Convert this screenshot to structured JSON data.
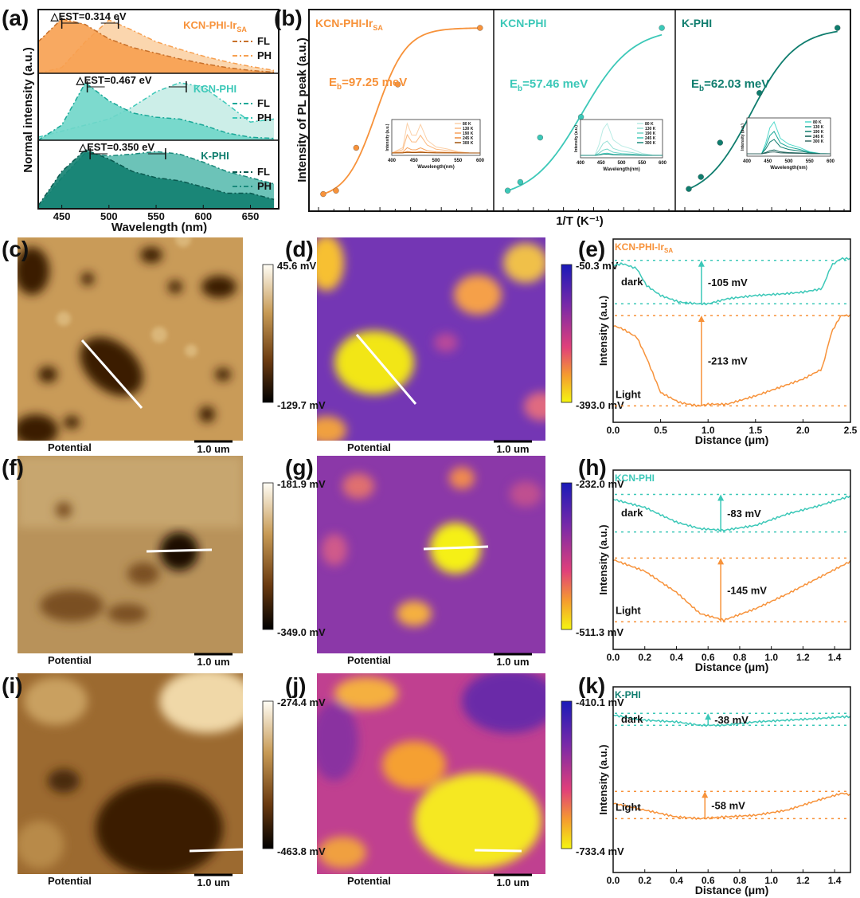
{
  "panel_labels": [
    "(a)",
    "(b)",
    "(c)",
    "(d)",
    "(e)",
    "(f)",
    "(g)",
    "(h)",
    "(i)",
    "(j)",
    "(k)"
  ],
  "colors": {
    "orange": "#f7923a",
    "cyan": "#3cc8b8",
    "teal": "#0f7d6e",
    "teal_mid": "#2aa89a"
  },
  "samples": [
    {
      "name": "KCN-PHI-Ir",
      "sub": "SA"
    },
    {
      "name": "KCN-PHI",
      "sub": ""
    },
    {
      "name": "K-PHI",
      "sub": ""
    }
  ],
  "chart_data": [
    {
      "id": "a",
      "type": "area",
      "xlabel": "Wavelength (nm)",
      "ylabel": "Normal intensity (a.u.)",
      "xlim": [
        425,
        680
      ],
      "xticks": [
        450,
        500,
        550,
        600,
        650
      ],
      "legend": [
        "FL",
        "PH"
      ],
      "x": [
        425,
        450,
        475,
        500,
        525,
        550,
        575,
        600,
        625,
        650,
        675
      ],
      "panels": [
        {
          "sample": "KCN-PHI-IrSA",
          "delta": "△EST=0.314 eV",
          "fl_peak": 450,
          "ph_peak": 510,
          "FL": [
            0.55,
            0.95,
            0.85,
            0.6,
            0.45,
            0.35,
            0.25,
            0.17,
            0.1,
            0.05,
            0.02
          ],
          "PH": [
            0,
            0.1,
            0.55,
            0.93,
            0.75,
            0.55,
            0.42,
            0.3,
            0.2,
            0.12,
            0.05
          ]
        },
        {
          "sample": "KCN-PHI",
          "delta": "△EST=0.467 eV",
          "fl_peak": 477,
          "ph_peak": 582,
          "FL": [
            0,
            0.25,
            0.95,
            0.65,
            0.45,
            0.38,
            0.35,
            0.25,
            0.12,
            0.05,
            0.03
          ],
          "PH": [
            0.05,
            0.15,
            0.25,
            0.35,
            0.55,
            0.8,
            0.95,
            0.88,
            0.6,
            0.3,
            0.35
          ]
        },
        {
          "sample": "K-PHI",
          "delta": "△EST=0.350 eV",
          "fl_peak": 480,
          "ph_peak": 560,
          "FL": [
            0.05,
            0.6,
            0.95,
            0.8,
            0.6,
            0.5,
            0.45,
            0.35,
            0.25,
            0.25,
            0.15
          ],
          "PH": [
            0.02,
            0.5,
            0.9,
            0.85,
            0.88,
            0.92,
            0.88,
            0.75,
            0.6,
            0.5,
            0.4
          ]
        }
      ]
    },
    {
      "id": "b",
      "type": "scatter",
      "xlabel": "1/T (K⁻¹)",
      "ylabel": "Intensity of PL peak (a.u.)",
      "xlim": [
        0.0025,
        0.0133
      ],
      "temperatures_K": [
        300,
        245,
        190,
        130,
        80
      ],
      "panels": [
        {
          "sample": "KCN-PHI-IrSA",
          "eb": "E",
          "eb_sub": "b",
          "eb_text": "=97.25 meV",
          "Eb_meV": 97.25,
          "y": [
            0.03,
            0.05,
            0.3,
            0.67,
            1.0
          ]
        },
        {
          "sample": "KCN-PHI",
          "eb": "E",
          "eb_sub": "b",
          "eb_text": "=57.46 meV",
          "Eb_meV": 57.46,
          "y": [
            0.05,
            0.1,
            0.36,
            0.48,
            1.0
          ]
        },
        {
          "sample": "K-PHI",
          "eb": "E",
          "eb_sub": "b",
          "eb_text": "=62.03 meV",
          "Eb_meV": 62.03,
          "y": [
            0.06,
            0.13,
            0.33,
            0.62,
            1.0
          ]
        }
      ],
      "inset": {
        "xlabel": "Wavelength(nm)",
        "ylabel": "Intensity (a.u.)",
        "xticks": [
          400,
          450,
          500,
          550,
          600
        ],
        "legend": [
          "80 K",
          "130 K",
          "190 K",
          "245 K",
          "300 K"
        ],
        "x": [
          400,
          425,
          435,
          445,
          455,
          465,
          480,
          500,
          525,
          550,
          575,
          600
        ]
      }
    },
    {
      "id": "e",
      "type": "line",
      "title_sample": "KCN-PHI-IrSA",
      "xlabel": "Distance (μm)",
      "ylabel": "Intensity (a.u.)",
      "xlim": [
        0,
        2.5
      ],
      "xticks": [
        "0.0",
        "0.5",
        "1.0",
        "1.5",
        "2.0",
        "2.5"
      ],
      "ylim": [
        0,
        1
      ],
      "x": [
        0,
        0.1,
        0.25,
        0.35,
        0.5,
        0.7,
        0.9,
        1.0,
        1.2,
        1.5,
        1.8,
        2.0,
        2.2,
        2.3,
        2.4,
        2.5
      ],
      "series": [
        {
          "name": "dark",
          "values": [
            0.9,
            0.91,
            0.88,
            0.78,
            0.72,
            0.68,
            0.67,
            0.67,
            0.7,
            0.72,
            0.73,
            0.74,
            0.76,
            0.9,
            0.94,
            0.94
          ],
          "refs": [
            0.93,
            0.67
          ],
          "delta": "-105 mV",
          "arrow_x": 0.93
        },
        {
          "name": "Light",
          "values": [
            0.54,
            0.52,
            0.47,
            0.35,
            0.14,
            0.08,
            0.06,
            0.07,
            0.07,
            0.12,
            0.18,
            0.22,
            0.28,
            0.5,
            0.6,
            0.6
          ],
          "refs": [
            0.6,
            0.06
          ],
          "delta": "-213 mV",
          "arrow_x": 0.93
        }
      ]
    },
    {
      "id": "h",
      "type": "line",
      "title_sample": "KCN-PHI",
      "xlabel": "Distance (μm)",
      "ylabel": "Intensity (a.u.)",
      "xlim": [
        0,
        1.5
      ],
      "xticks": [
        "0.0",
        "0.2",
        "0.4",
        "0.6",
        "0.8",
        "1.0",
        "1.2",
        "1.4"
      ],
      "ylim": [
        0,
        100
      ],
      "x": [
        0,
        0.2,
        0.4,
        0.55,
        0.7,
        0.9,
        1.1,
        1.3,
        1.5
      ],
      "series": [
        {
          "name": "dark",
          "values": [
            88,
            83,
            74,
            70,
            69,
            72,
            79,
            84,
            90
          ],
          "refs": [
            91,
            68
          ],
          "delta": "-83 mV",
          "arrow_x": 0.68
        },
        {
          "name": "Light",
          "values": [
            51,
            44,
            31,
            18,
            14,
            21,
            30,
            40,
            50
          ],
          "refs": [
            52,
            13
          ],
          "delta": "-145 mV",
          "arrow_x": 0.68
        }
      ]
    },
    {
      "id": "k",
      "type": "line",
      "title_sample": "K-PHI",
      "xlabel": "Distance (μm)",
      "ylabel": "Intensity (a.u.)",
      "xlim": [
        0,
        1.5
      ],
      "xticks": [
        "0.0",
        "0.2",
        "0.4",
        "0.6",
        "0.8",
        "1.0",
        "1.2",
        "1.4"
      ],
      "ylim": [
        0,
        100
      ],
      "x": [
        0,
        0.2,
        0.4,
        0.55,
        0.7,
        0.9,
        1.1,
        1.3,
        1.45,
        1.5
      ],
      "series": [
        {
          "name": "dark",
          "values": [
            89,
            86,
            85,
            83,
            83,
            85,
            86,
            87,
            88,
            88
          ],
          "refs": [
            90,
            83
          ],
          "delta": "-38 mV",
          "arrow_x": 0.6
        },
        {
          "name": "Light",
          "values": [
            37,
            33,
            29,
            28,
            29,
            30,
            33,
            39,
            43,
            42
          ],
          "refs": [
            44,
            28
          ],
          "delta": "-58 mV",
          "arrow_x": 0.58
        }
      ]
    }
  ],
  "maps": {
    "caption": "Potential",
    "scale_bar": "1.0 um",
    "c": {
      "max": "45.6 mV",
      "min": "-129.7 mV"
    },
    "d": {
      "max": "-50.3 mV",
      "min": "-393.0 mV"
    },
    "f": {
      "max": "-181.9 mV",
      "min": "-349.0 mV"
    },
    "g": {
      "max": "-232.0 mV",
      "min": "-511.3 mV"
    },
    "i": {
      "max": "-274.4 mV",
      "min": "-463.8 mV"
    },
    "j": {
      "max": "-410.1 mV",
      "min": "-733.4 mV"
    }
  }
}
